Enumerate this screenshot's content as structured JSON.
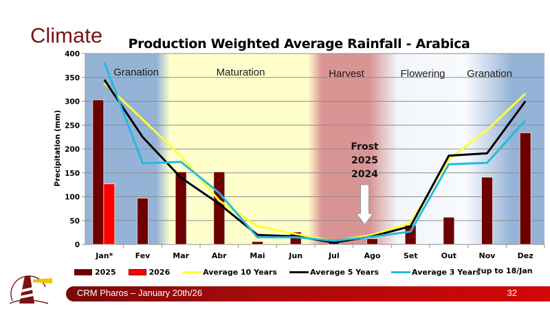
{
  "slide": {
    "title": "Climate",
    "footer_text": "CRM Pharos –  January 20th/26",
    "page_number": "32",
    "logo": "lighthouse-logo-icon"
  },
  "colors": {
    "title": "#7a1414",
    "bar_2025": "#6e0000",
    "bar_2026": "#ff0000",
    "avg10": "#ffff33",
    "avg5": "#000000",
    "avg3": "#22bbdd",
    "phase_granation": "#95b3d7",
    "phase_maturation": "#ffffcc",
    "phase_harvest": "#d99594",
    "phase_flowering": "#f2f6fb",
    "footer_bar": "#b00a0a"
  },
  "chart_data": {
    "type": "bar",
    "title": "Production Weighted Average Rainfall - Arabica",
    "xlabel": "",
    "ylabel": "Precipitation (mm)",
    "ylim": [
      0,
      400
    ],
    "yticks": [
      0,
      50,
      100,
      150,
      200,
      250,
      300,
      350,
      400
    ],
    "grid": true,
    "legend_position": "bottom",
    "categories": [
      "Jan*",
      "Fev",
      "Mar",
      "Abr",
      "Mai",
      "Jun",
      "Jul",
      "Ago",
      "Set",
      "Out",
      "Nov",
      "Dez"
    ],
    "series": [
      {
        "name": "2025",
        "kind": "bar",
        "values": [
          303,
          97,
          152,
          152,
          6,
          26,
          4,
          12,
          40,
          57,
          141,
          234
        ]
      },
      {
        "name": "2026",
        "kind": "bar",
        "values": [
          127,
          null,
          null,
          null,
          null,
          null,
          null,
          null,
          null,
          null,
          null,
          null
        ]
      },
      {
        "name": "Average 10 Years",
        "kind": "line",
        "values": [
          338,
          262,
          185,
          92,
          38,
          22,
          7,
          20,
          45,
          178,
          240,
          316
        ]
      },
      {
        "name": "Average 5 Years",
        "kind": "line",
        "values": [
          345,
          225,
          140,
          85,
          20,
          17,
          4,
          17,
          38,
          186,
          191,
          300
        ]
      },
      {
        "name": "Average 3 Years",
        "kind": "line",
        "values": [
          381,
          170,
          173,
          108,
          15,
          15,
          8,
          16,
          27,
          168,
          171,
          260
        ]
      }
    ],
    "phases": [
      {
        "label": "Granation",
        "from": "Jan*",
        "to": "Fev"
      },
      {
        "label": "Maturation",
        "from": "Mar",
        "to": "Jun"
      },
      {
        "label": "Harvest",
        "from": "Jul",
        "to": "Ago"
      },
      {
        "label": "Flowering",
        "from": "Set",
        "to": "Out"
      },
      {
        "label": "Granation",
        "from": "Nov",
        "to": "Dez"
      }
    ],
    "annotations": [
      {
        "text": [
          "Frost",
          "2025",
          "2024"
        ],
        "at": "Ago",
        "arrow": "down"
      }
    ],
    "footnote": "*up to 18/Jan"
  }
}
